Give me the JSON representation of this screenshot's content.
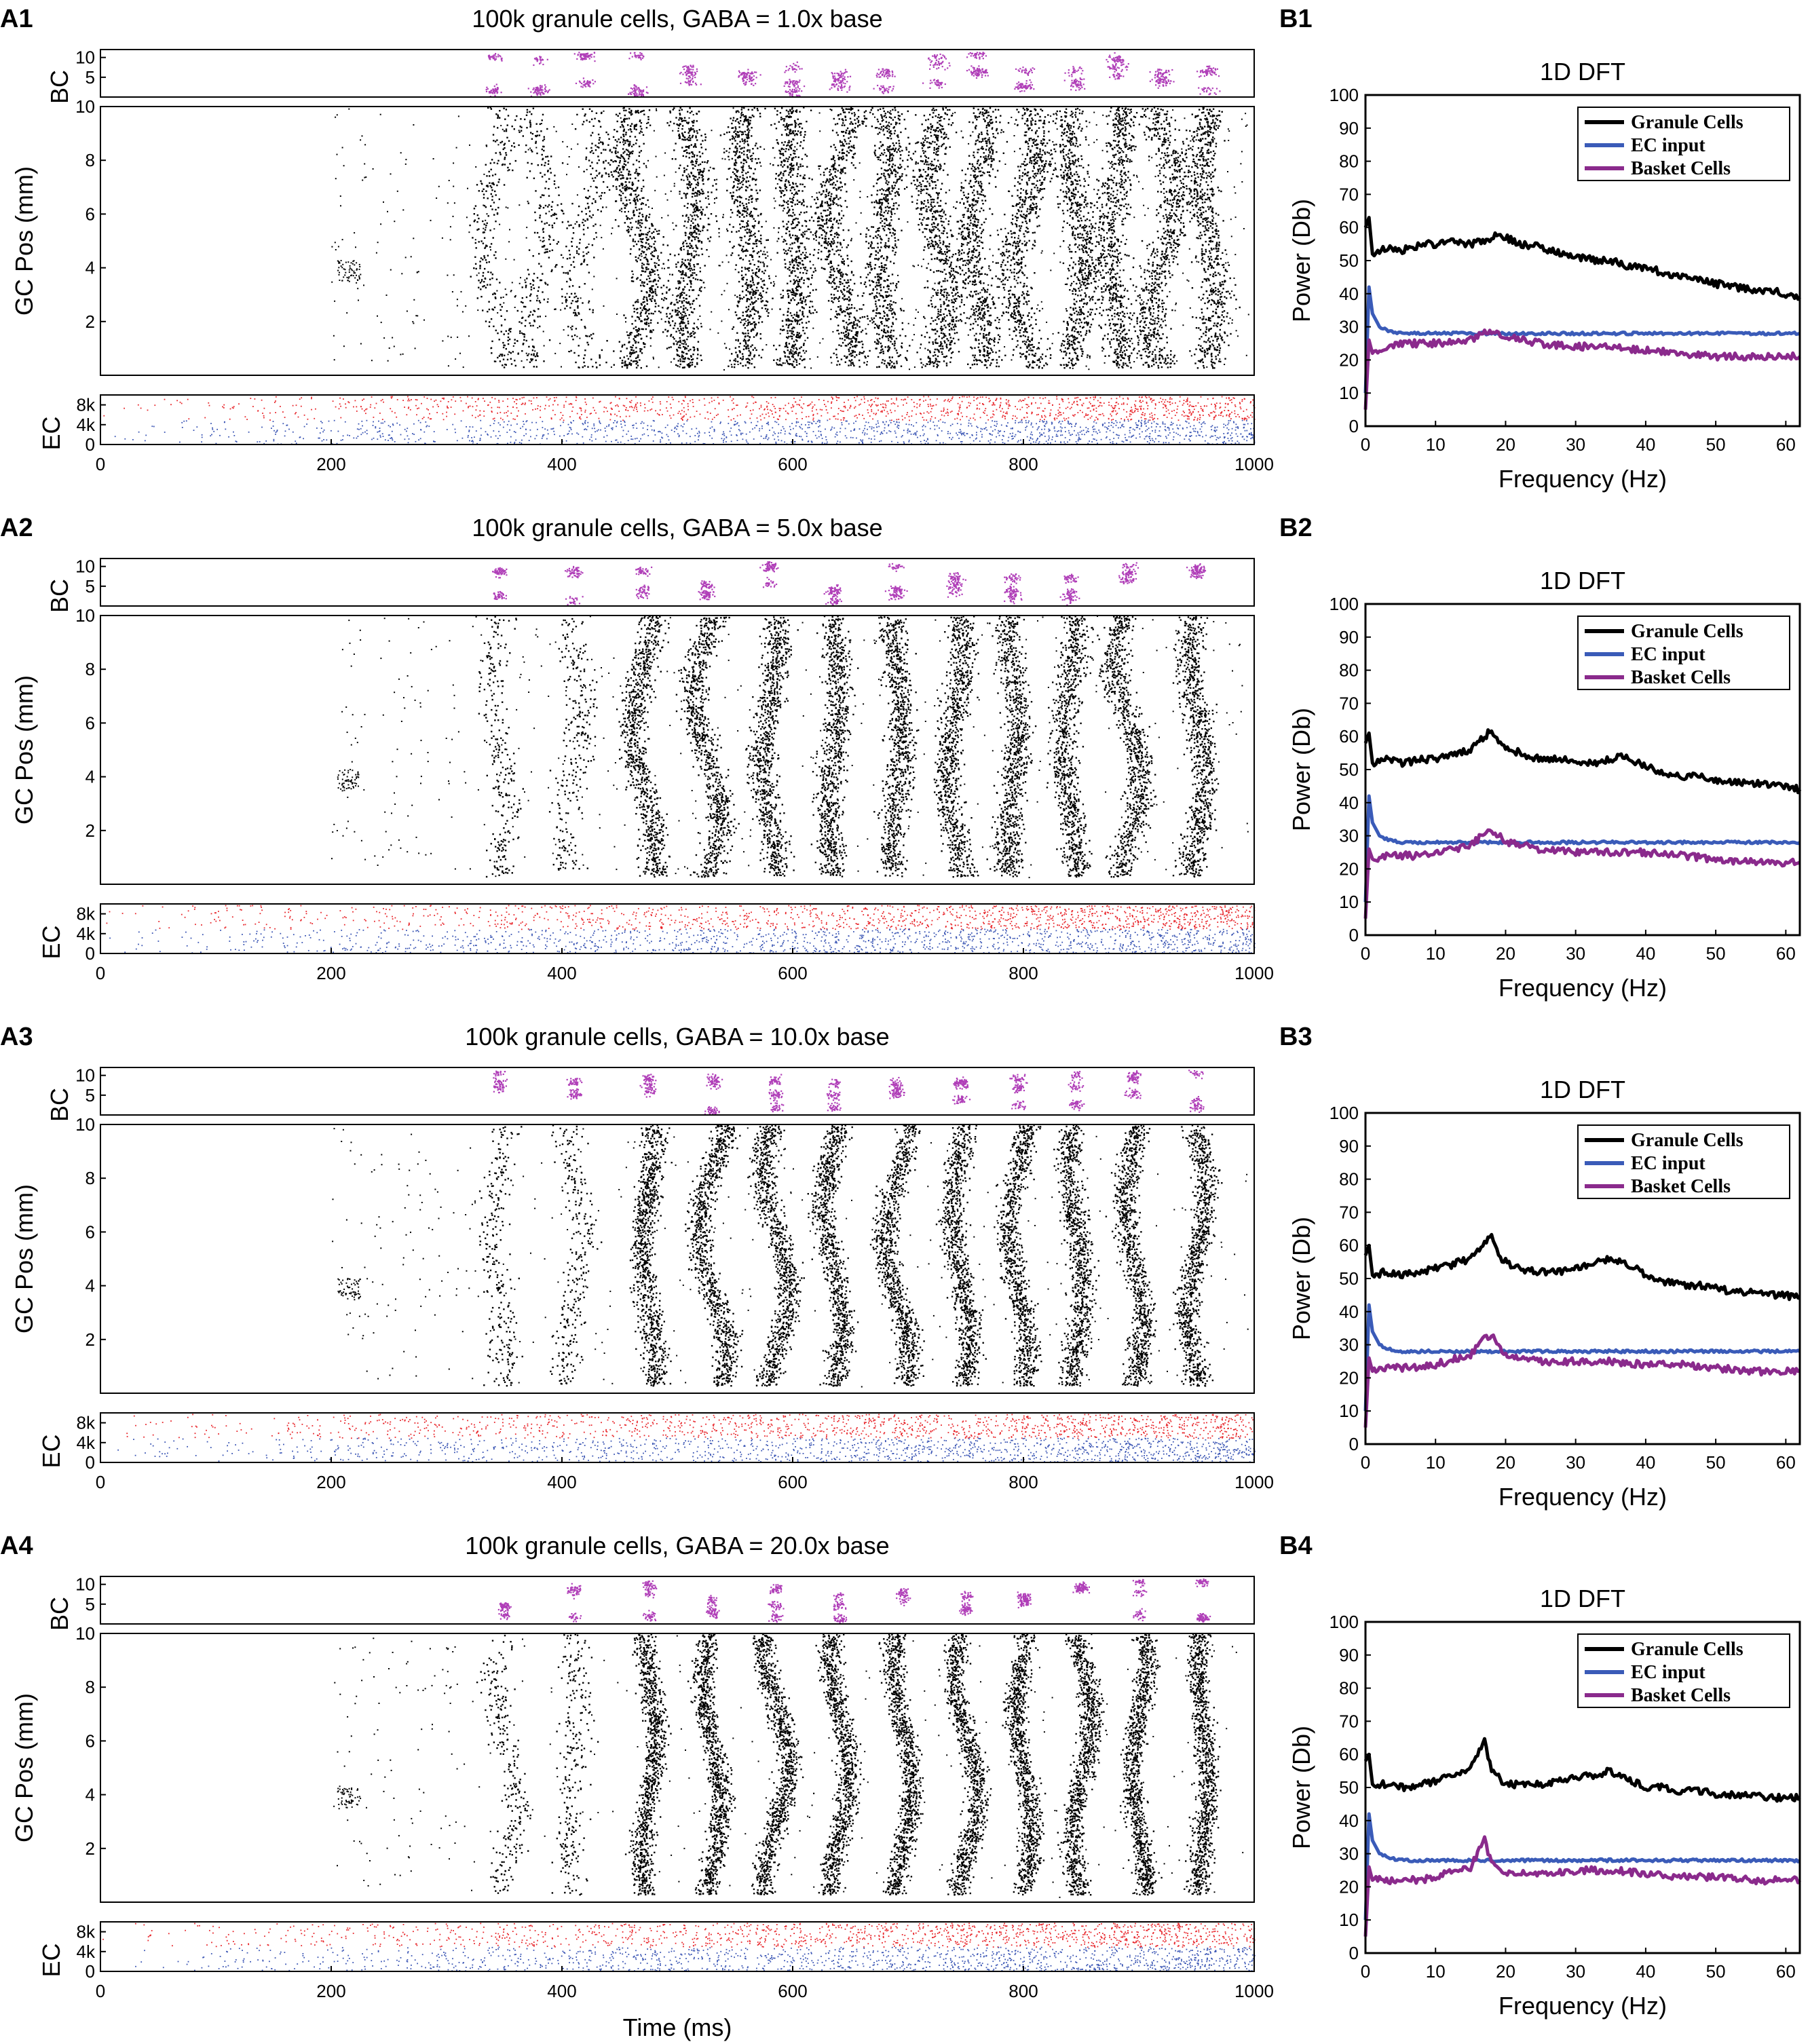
{
  "figure": {
    "colors": {
      "gc": "#000000",
      "bc": "#b03fb8",
      "ec_high": "#e8262b",
      "ec_low": "#3a55b4",
      "dft_gc": "#000000",
      "dft_ec": "#3a5bb8",
      "dft_bc": "#8a2a8c"
    },
    "xlabel_bottom": "Time (ms)"
  },
  "chart_data": [
    {
      "id": "A1",
      "label": "A1",
      "type": "scatter",
      "title": "100k granule cells, GABA = 1.0x base",
      "gaba": 1.0,
      "xlim": [
        0,
        1000
      ],
      "xticks": [
        "0",
        "200",
        "400",
        "600",
        "800",
        "1000"
      ],
      "subplots": {
        "bc": {
          "ylabel": "BC",
          "ylim": [
            0,
            12
          ],
          "yticks": [
            "5",
            "10"
          ]
        },
        "gc": {
          "ylabel": "GC Pos (mm)",
          "ylim": [
            0,
            10
          ],
          "yticks": [
            "2",
            "4",
            "6",
            "8",
            "10"
          ]
        },
        "ec": {
          "ylabel": "EC",
          "ylim": [
            0,
            10
          ],
          "yticks": [
            "0",
            "4k",
            "8k"
          ]
        }
      },
      "gc_bursts_ms": [
        340,
        380,
        420,
        465,
        510,
        560,
        600,
        640,
        680,
        725,
        760,
        800,
        845,
        880,
        920,
        960
      ]
    },
    {
      "id": "A2",
      "label": "A2",
      "type": "scatter",
      "title": "100k granule cells, GABA = 5.0x base",
      "gaba": 5.0,
      "xlim": [
        0,
        1000
      ],
      "xticks": [
        "0",
        "200",
        "400",
        "600",
        "800",
        "1000"
      ],
      "subplots": {
        "bc": {
          "ylabel": "BC",
          "ylim": [
            0,
            12
          ],
          "yticks": [
            "5",
            "10"
          ]
        },
        "gc": {
          "ylabel": "GC Pos (mm)",
          "ylim": [
            0,
            10
          ],
          "yticks": [
            "2",
            "4",
            "6",
            "8",
            "10"
          ]
        },
        "ec": {
          "ylabel": "EC",
          "ylim": [
            0,
            10
          ],
          "yticks": [
            "0",
            "4k",
            "8k"
          ]
        }
      },
      "gc_bursts_ms": [
        345,
        410,
        470,
        525,
        580,
        635,
        690,
        740,
        790,
        840,
        890,
        950
      ]
    },
    {
      "id": "A3",
      "label": "A3",
      "type": "scatter",
      "title": "100k granule cells, GABA = 10.0x base",
      "gaba": 10.0,
      "xlim": [
        0,
        1000
      ],
      "xticks": [
        "0",
        "200",
        "400",
        "600",
        "800",
        "1000"
      ],
      "subplots": {
        "bc": {
          "ylabel": "BC",
          "ylim": [
            0,
            12
          ],
          "yticks": [
            "5",
            "10"
          ]
        },
        "gc": {
          "ylabel": "GC Pos (mm)",
          "ylim": [
            0,
            10
          ],
          "yticks": [
            "2",
            "4",
            "6",
            "8",
            "10"
          ]
        },
        "ec": {
          "ylabel": "EC",
          "ylim": [
            0,
            10
          ],
          "yticks": [
            "0",
            "4k",
            "8k"
          ]
        }
      },
      "gc_bursts_ms": [
        345,
        410,
        475,
        530,
        585,
        635,
        690,
        745,
        795,
        845,
        895,
        950
      ]
    },
    {
      "id": "A4",
      "label": "A4",
      "type": "scatter",
      "title": "100k granule cells, GABA = 20.0x base",
      "gaba": 20.0,
      "xlim": [
        0,
        1000
      ],
      "xticks": [
        "0",
        "200",
        "400",
        "600",
        "800",
        "1000"
      ],
      "subplots": {
        "bc": {
          "ylabel": "BC",
          "ylim": [
            0,
            12
          ],
          "yticks": [
            "5",
            "10"
          ]
        },
        "gc": {
          "ylabel": "GC Pos (mm)",
          "ylim": [
            0,
            10
          ],
          "yticks": [
            "2",
            "4",
            "6",
            "8",
            "10"
          ]
        },
        "ec": {
          "ylabel": "EC",
          "ylim": [
            0,
            10
          ],
          "yticks": [
            "0",
            "4k",
            "8k"
          ]
        }
      },
      "gc_bursts_ms": [
        350,
        410,
        475,
        530,
        585,
        640,
        695,
        750,
        800,
        850,
        900,
        955
      ]
    },
    {
      "id": "B1",
      "label": "B1",
      "type": "line",
      "title": "1D DFT",
      "xlabel": "Frequency (Hz)",
      "ylabel": "Power (Db)",
      "xlim": [
        0,
        62
      ],
      "ylim": [
        0,
        100
      ],
      "xticks": [
        "0",
        "10",
        "20",
        "30",
        "40",
        "50",
        "60"
      ],
      "yticks": [
        "0",
        "10",
        "20",
        "30",
        "40",
        "50",
        "60",
        "70",
        "80",
        "90",
        "100"
      ],
      "legend": "top-right",
      "series": [
        {
          "name": "Granule Cells",
          "x": [
            0,
            0.5,
            1,
            3,
            5,
            8,
            10,
            12,
            15,
            17,
            19,
            20,
            22,
            25,
            28,
            30,
            33,
            35,
            38,
            40,
            43,
            45,
            48,
            50,
            53,
            55,
            58,
            60,
            62
          ],
          "y": [
            60,
            63,
            52,
            54,
            53,
            55,
            55,
            56,
            55,
            56,
            58,
            57,
            55,
            54,
            52,
            51,
            50,
            50,
            48,
            48,
            46,
            45,
            44,
            43,
            42,
            41,
            41,
            40,
            39
          ]
        },
        {
          "name": "EC input",
          "x": [
            0,
            0.5,
            1,
            2,
            3,
            5,
            10,
            20,
            30,
            40,
            50,
            60,
            62
          ],
          "y": [
            10,
            42,
            34,
            30,
            29,
            28,
            28,
            28,
            28,
            28,
            28,
            28,
            28
          ]
        },
        {
          "name": "Basket Cells",
          "x": [
            0,
            0.5,
            1,
            3,
            5,
            8,
            10,
            15,
            18,
            20,
            25,
            30,
            35,
            40,
            45,
            50,
            55,
            60,
            62
          ],
          "y": [
            5,
            26,
            22,
            24,
            25,
            25,
            25,
            26,
            29,
            27,
            25,
            24,
            24,
            23,
            22,
            21,
            21,
            21,
            21
          ]
        }
      ]
    },
    {
      "id": "B2",
      "label": "B2",
      "type": "line",
      "title": "1D DFT",
      "xlabel": "Frequency (Hz)",
      "ylabel": "Power (Db)",
      "xlim": [
        0,
        62
      ],
      "ylim": [
        0,
        100
      ],
      "xticks": [
        "0",
        "10",
        "20",
        "30",
        "40",
        "50",
        "60"
      ],
      "yticks": [
        "0",
        "10",
        "20",
        "30",
        "40",
        "50",
        "60",
        "70",
        "80",
        "90",
        "100"
      ],
      "legend": "top-right",
      "series": [
        {
          "name": "Granule Cells",
          "x": [
            0,
            0.5,
            1,
            3,
            5,
            8,
            10,
            12,
            15,
            17,
            18,
            19,
            20,
            22,
            25,
            28,
            30,
            33,
            35,
            37,
            38,
            40,
            43,
            45,
            48,
            50,
            53,
            55,
            58,
            60,
            62
          ],
          "y": [
            58,
            61,
            52,
            53,
            52,
            53,
            53,
            54,
            56,
            60,
            62,
            59,
            57,
            55,
            53,
            53,
            52,
            52,
            53,
            54,
            53,
            51,
            49,
            48,
            48,
            47,
            46,
            46,
            45,
            45,
            44
          ]
        },
        {
          "name": "EC input",
          "x": [
            0,
            0.5,
            1,
            2,
            3,
            5,
            10,
            20,
            30,
            40,
            50,
            60,
            62
          ],
          "y": [
            10,
            42,
            34,
            30,
            29,
            28,
            28,
            28,
            28,
            28,
            28,
            28,
            28
          ]
        },
        {
          "name": "Basket Cells",
          "x": [
            0,
            0.5,
            1,
            3,
            5,
            8,
            10,
            15,
            17,
            18,
            20,
            25,
            30,
            35,
            40,
            45,
            50,
            55,
            60,
            62
          ],
          "y": [
            5,
            26,
            23,
            24,
            24,
            24,
            25,
            27,
            31,
            32,
            28,
            26,
            25,
            25,
            25,
            24,
            23,
            22,
            22,
            22
          ]
        }
      ]
    },
    {
      "id": "B3",
      "label": "B3",
      "type": "line",
      "title": "1D DFT",
      "xlabel": "Frequency (Hz)",
      "ylabel": "Power (Db)",
      "xlim": [
        0,
        62
      ],
      "ylim": [
        0,
        100
      ],
      "xticks": [
        "0",
        "10",
        "20",
        "30",
        "40",
        "50",
        "60"
      ],
      "yticks": [
        "0",
        "10",
        "20",
        "30",
        "40",
        "50",
        "60",
        "70",
        "80",
        "90",
        "100"
      ],
      "legend": "top-right",
      "series": [
        {
          "name": "Granule Cells",
          "x": [
            0,
            0.5,
            1,
            3,
            5,
            8,
            10,
            12,
            15,
            17,
            18,
            19,
            20,
            22,
            25,
            28,
            30,
            33,
            35,
            37,
            40,
            43,
            45,
            48,
            50,
            53,
            55,
            58,
            60,
            62
          ],
          "y": [
            57,
            60,
            51,
            52,
            51,
            52,
            53,
            54,
            56,
            61,
            63,
            57,
            55,
            53,
            52,
            52,
            53,
            55,
            56,
            55,
            51,
            49,
            48,
            48,
            47,
            46,
            46,
            45,
            45,
            44
          ]
        },
        {
          "name": "EC input",
          "x": [
            0,
            0.5,
            1,
            2,
            3,
            5,
            10,
            20,
            30,
            40,
            50,
            60,
            62
          ],
          "y": [
            10,
            42,
            34,
            30,
            29,
            28,
            28,
            28,
            28,
            28,
            28,
            28,
            28
          ]
        },
        {
          "name": "Basket Cells",
          "x": [
            0,
            0.5,
            1,
            3,
            5,
            8,
            10,
            15,
            17,
            18,
            20,
            25,
            30,
            35,
            40,
            45,
            50,
            55,
            60,
            62
          ],
          "y": [
            5,
            26,
            22,
            23,
            23,
            23,
            24,
            27,
            32,
            33,
            27,
            25,
            25,
            25,
            24,
            24,
            23,
            22,
            22,
            22
          ]
        }
      ]
    },
    {
      "id": "B4",
      "label": "B4",
      "type": "line",
      "title": "1D DFT",
      "xlabel": "Frequency (Hz)",
      "ylabel": "Power (Db)",
      "xlim": [
        0,
        62
      ],
      "ylim": [
        0,
        100
      ],
      "xticks": [
        "0",
        "10",
        "20",
        "30",
        "40",
        "50",
        "60"
      ],
      "yticks": [
        "0",
        "10",
        "20",
        "30",
        "40",
        "50",
        "60",
        "70",
        "80",
        "90",
        "100"
      ],
      "legend": "top-right",
      "series": [
        {
          "name": "Granule Cells",
          "x": [
            0,
            0.5,
            1,
            3,
            5,
            8,
            10,
            12,
            15,
            16,
            17,
            18,
            20,
            22,
            25,
            28,
            30,
            33,
            35,
            38,
            40,
            43,
            45,
            48,
            50,
            53,
            55,
            58,
            60,
            62
          ],
          "y": [
            58,
            60,
            51,
            51,
            50,
            51,
            52,
            53,
            56,
            60,
            64,
            55,
            51,
            51,
            51,
            52,
            53,
            54,
            55,
            52,
            50,
            50,
            49,
            49,
            48,
            48,
            48,
            47,
            47,
            47
          ]
        },
        {
          "name": "EC input",
          "x": [
            0,
            0.5,
            1,
            2,
            3,
            5,
            10,
            20,
            30,
            40,
            50,
            60,
            62
          ],
          "y": [
            10,
            42,
            34,
            30,
            29,
            28,
            28,
            28,
            28,
            28,
            28,
            28,
            28
          ]
        },
        {
          "name": "Basket Cells",
          "x": [
            0,
            0.5,
            1,
            3,
            5,
            8,
            10,
            15,
            16,
            17,
            18,
            20,
            25,
            30,
            35,
            40,
            45,
            50,
            55,
            60,
            62
          ],
          "y": [
            5,
            26,
            22,
            22,
            22,
            22,
            23,
            26,
            30,
            34,
            27,
            24,
            24,
            25,
            25,
            24,
            23,
            23,
            22,
            22,
            22
          ]
        }
      ]
    }
  ]
}
